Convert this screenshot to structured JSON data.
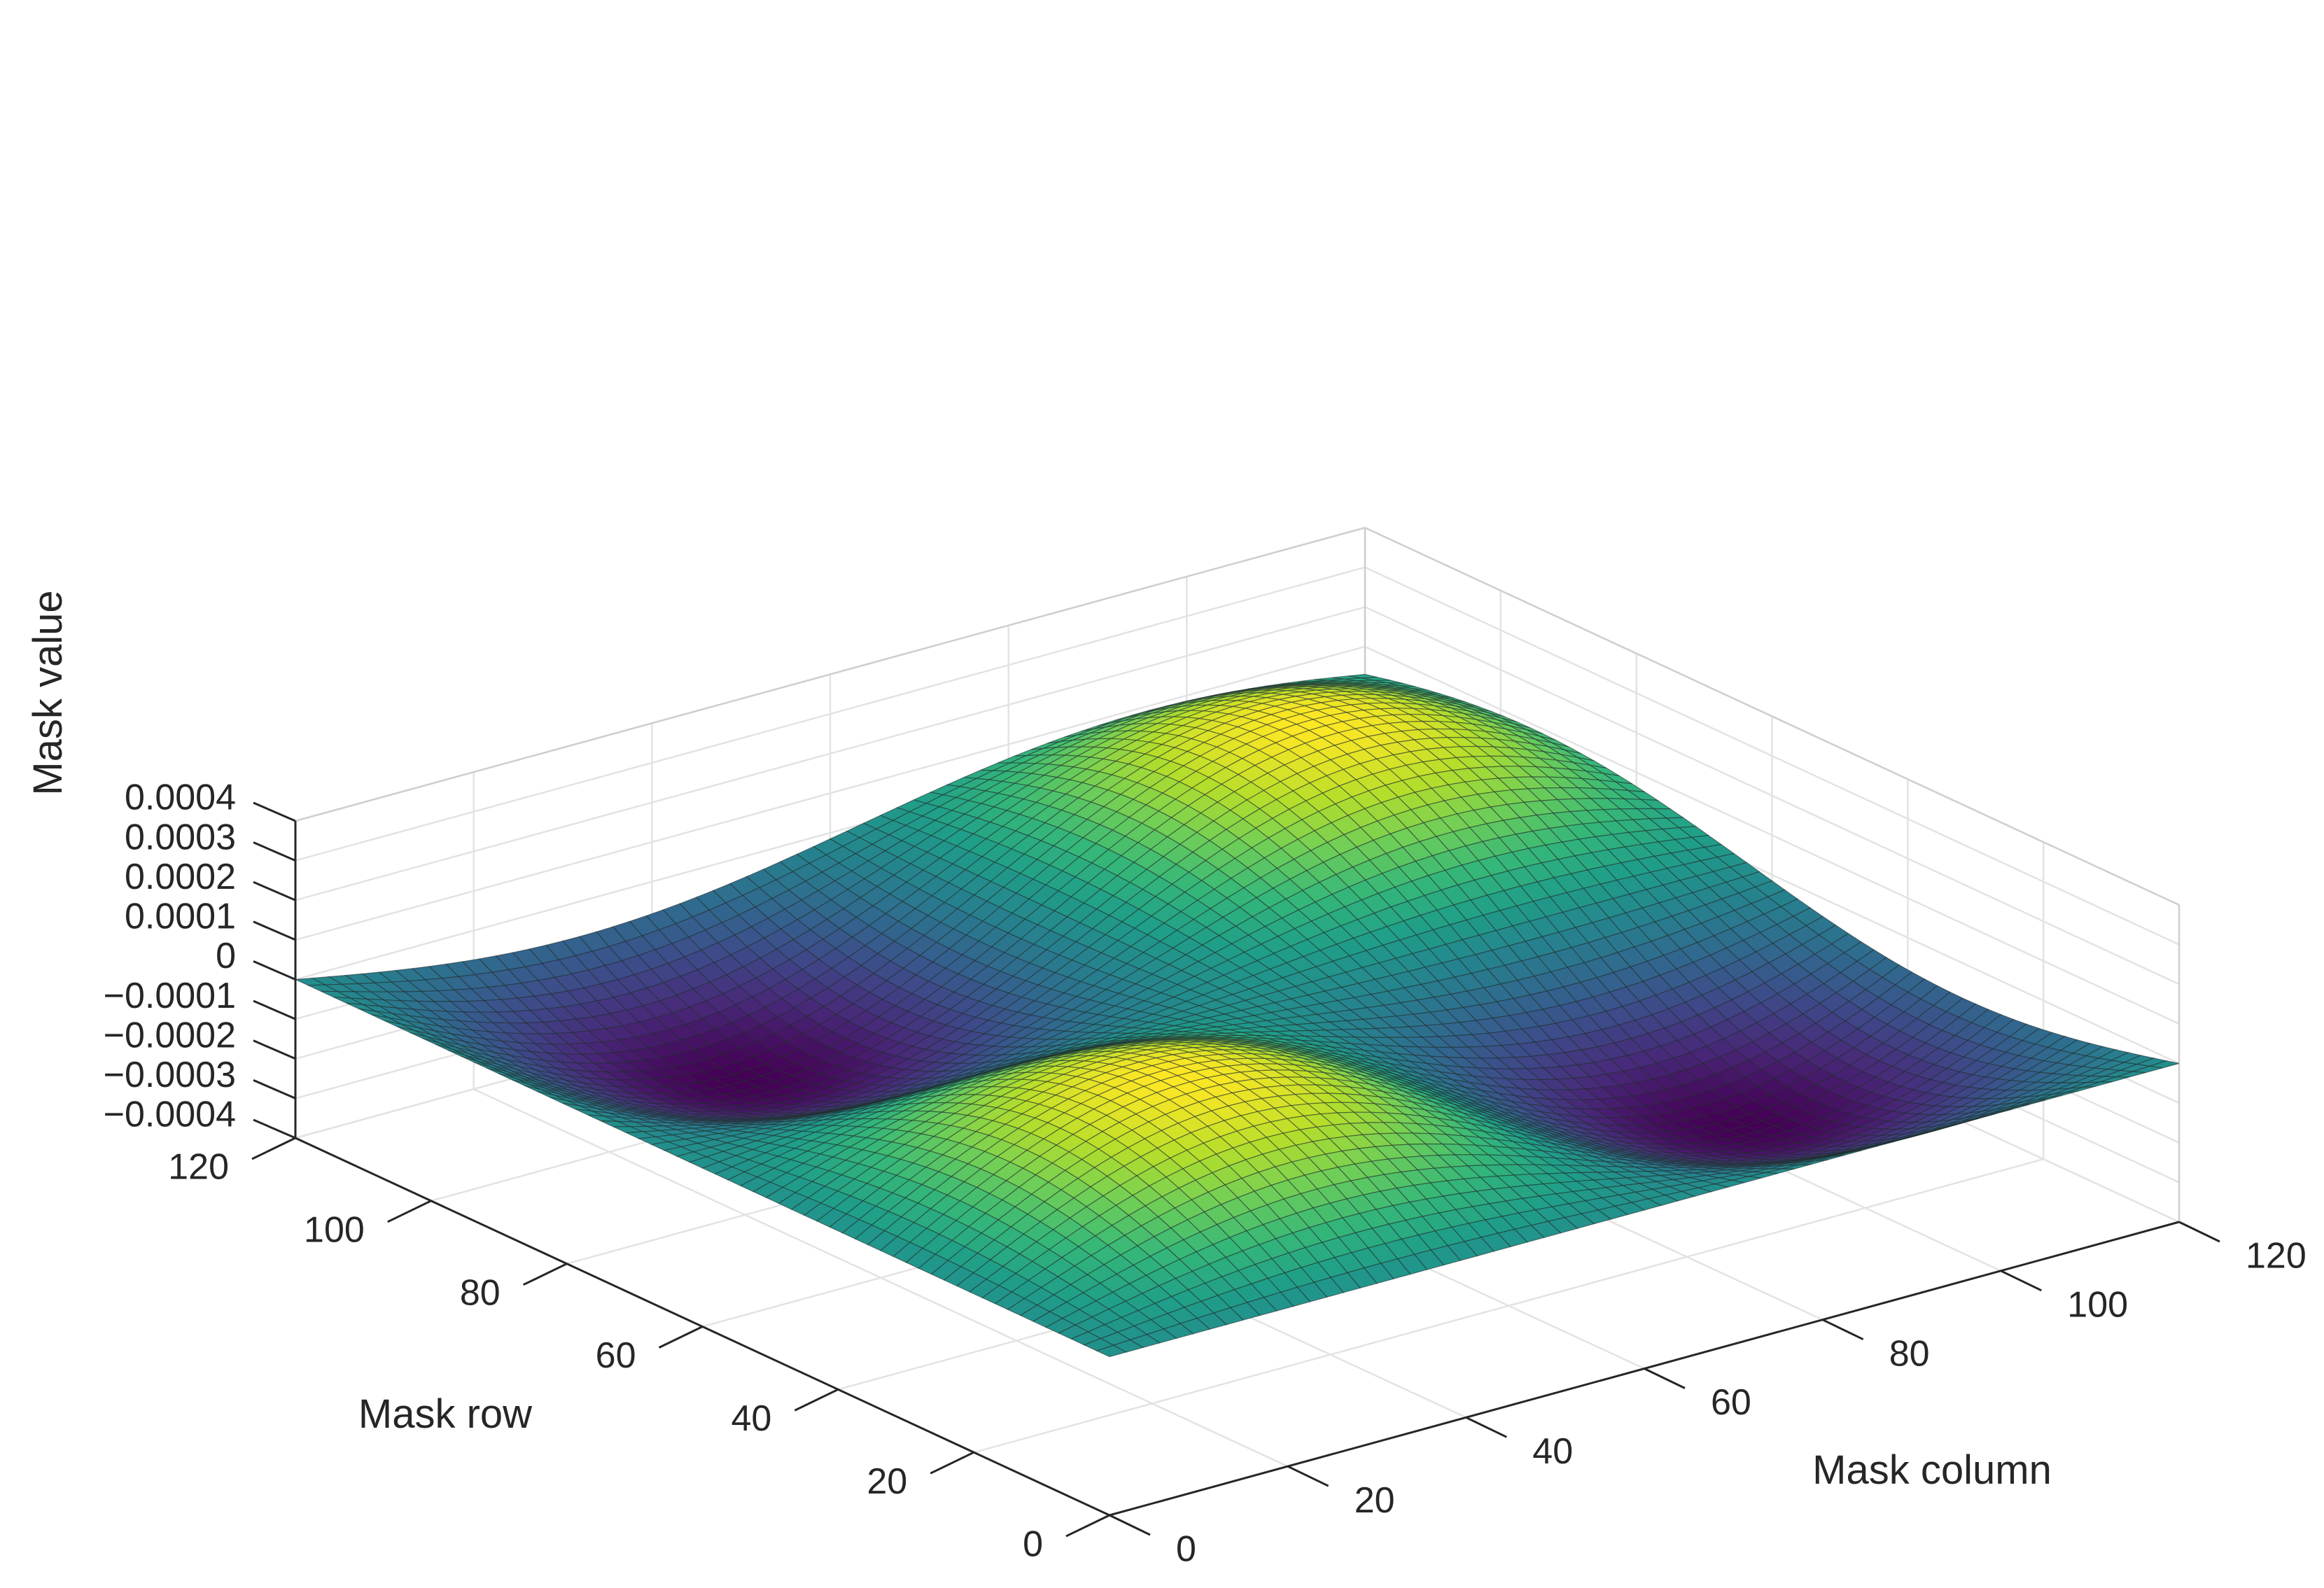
{
  "chart_data": {
    "type": "surface",
    "xlabel": "Mask column",
    "ylabel": "Mask row",
    "zlabel": "Mask value",
    "xlim": [
      0,
      120
    ],
    "ylim": [
      0,
      120
    ],
    "zlim": [
      -0.0004,
      0.0004
    ],
    "x_ticks": [
      "0",
      "20",
      "40",
      "60",
      "80",
      "100",
      "120"
    ],
    "y_ticks": [
      "0",
      "20",
      "40",
      "60",
      "80",
      "100",
      "120"
    ],
    "z_ticks": [
      "−0.0004",
      "−0.0003",
      "−0.0002",
      "−0.0001",
      "0",
      "0.0001",
      "0.0002",
      "0.0003",
      "0.0004"
    ],
    "grid": true,
    "colormap": "viridis",
    "surface": {
      "grid_points": 128,
      "function": "A * sin(2*pi*col/127) * sin(2*pi*row/127)",
      "amplitude": 0.00026,
      "peaks": [
        {
          "col": 32,
          "row": 32,
          "value": 0.00026
        },
        {
          "col": 95,
          "row": 95,
          "value": 0.00026
        }
      ],
      "troughs": [
        {
          "col": 95,
          "row": 32,
          "value": -0.00026
        },
        {
          "col": 32,
          "row": 95,
          "value": -0.00026
        }
      ]
    }
  }
}
